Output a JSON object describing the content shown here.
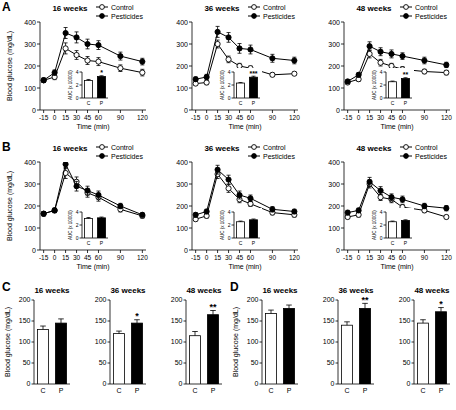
{
  "chart_data": [
    {
      "type": "line",
      "panel_label": "A",
      "title": "16 weeks",
      "x_label": "Time (min)",
      "y_label": "Blood glucose (mg/dL)",
      "x": [
        -15,
        0,
        15,
        30,
        45,
        60,
        90,
        120
      ],
      "xlim": [
        -20,
        125
      ],
      "xticks": [
        -15,
        0,
        15,
        30,
        45,
        60,
        90,
        120
      ],
      "ylim": [
        0,
        400
      ],
      "yticks": [
        0,
        100,
        200,
        300,
        400
      ],
      "legend": "upper right",
      "series": [
        {
          "name": "Control",
          "color": "#000000",
          "marker": "open-circle",
          "values": [
            135,
            150,
            280,
            250,
            225,
            220,
            190,
            170
          ],
          "errors": [
            10,
            12,
            25,
            20,
            18,
            18,
            15,
            15
          ]
        },
        {
          "name": "Pesticides",
          "color": "#000000",
          "marker": "filled-circle",
          "values": [
            135,
            170,
            350,
            330,
            300,
            295,
            245,
            220
          ],
          "errors": [
            10,
            12,
            25,
            25,
            22,
            20,
            18,
            15
          ]
        }
      ]
    },
    {
      "type": "line",
      "title": "36 weeks",
      "x_label": "Time (min)",
      "x": [
        -15,
        0,
        15,
        30,
        45,
        60,
        90,
        120
      ],
      "xlim": [
        -20,
        125
      ],
      "xticks": [
        -15,
        0,
        15,
        30,
        45,
        60,
        90,
        120
      ],
      "ylim": [
        0,
        400
      ],
      "yticks": [
        0,
        100,
        200,
        300,
        400
      ],
      "legend": "upper right",
      "series": [
        {
          "name": "Control",
          "color": "#000000",
          "marker": "open-circle",
          "values": [
            120,
            125,
            300,
            230,
            200,
            190,
            160,
            165
          ],
          "errors": [
            8,
            10,
            18,
            15,
            12,
            10,
            8,
            8
          ]
        },
        {
          "name": "Pesticides",
          "color": "#000000",
          "marker": "filled-circle",
          "values": [
            140,
            150,
            355,
            330,
            280,
            275,
            235,
            225
          ],
          "errors": [
            10,
            12,
            25,
            22,
            22,
            20,
            18,
            15
          ]
        }
      ]
    },
    {
      "type": "line",
      "title": "48 weeks",
      "x_label": "Time (min)",
      "x": [
        -15,
        0,
        15,
        30,
        45,
        60,
        90,
        120
      ],
      "xlim": [
        -20,
        125
      ],
      "xticks": [
        -15,
        0,
        15,
        30,
        45,
        60,
        90,
        120
      ],
      "ylim": [
        0,
        400
      ],
      "yticks": [
        0,
        100,
        200,
        300,
        400
      ],
      "legend": "upper right",
      "series": [
        {
          "name": "Control",
          "color": "#000000",
          "marker": "open-circle",
          "values": [
            125,
            140,
            255,
            215,
            200,
            185,
            175,
            170
          ],
          "errors": [
            8,
            10,
            18,
            15,
            12,
            12,
            10,
            10
          ]
        },
        {
          "name": "Pesticides",
          "color": "#000000",
          "marker": "filled-circle",
          "values": [
            130,
            160,
            290,
            265,
            255,
            245,
            225,
            205
          ],
          "errors": [
            8,
            10,
            20,
            18,
            18,
            15,
            15,
            12
          ]
        }
      ]
    },
    {
      "type": "line",
      "panel_label": "B",
      "title": "16 weeks",
      "x_label": "Time (min)",
      "y_label": "Blood glucose (mg/dL)",
      "x": [
        -15,
        0,
        15,
        30,
        45,
        60,
        90,
        120
      ],
      "xlim": [
        -20,
        125
      ],
      "xticks": [
        -15,
        0,
        15,
        30,
        45,
        60,
        90,
        120
      ],
      "ylim": [
        0,
        400
      ],
      "yticks": [
        0,
        100,
        200,
        300,
        400
      ],
      "legend": "upper right",
      "series": [
        {
          "name": "Control",
          "color": "#000000",
          "marker": "open-circle",
          "values": [
            165,
            180,
            350,
            310,
            260,
            240,
            185,
            155
          ],
          "errors": [
            10,
            10,
            25,
            22,
            20,
            18,
            12,
            10
          ]
        },
        {
          "name": "Pesticides",
          "color": "#000000",
          "marker": "filled-circle",
          "values": [
            165,
            180,
            390,
            290,
            270,
            250,
            200,
            160
          ],
          "errors": [
            10,
            10,
            20,
            22,
            20,
            18,
            12,
            10
          ]
        }
      ]
    },
    {
      "type": "line",
      "title": "36 weeks",
      "x_label": "Time (min)",
      "x": [
        -15,
        0,
        15,
        30,
        45,
        60,
        90,
        120
      ],
      "xlim": [
        -20,
        125
      ],
      "xticks": [
        -15,
        0,
        15,
        30,
        45,
        60,
        90,
        120
      ],
      "ylim": [
        0,
        400
      ],
      "yticks": [
        0,
        100,
        200,
        300,
        400
      ],
      "legend": "upper right",
      "series": [
        {
          "name": "Control",
          "color": "#000000",
          "marker": "open-circle",
          "values": [
            140,
            155,
            345,
            280,
            230,
            210,
            170,
            160
          ],
          "errors": [
            8,
            10,
            20,
            18,
            15,
            12,
            10,
            10
          ]
        },
        {
          "name": "Pesticides",
          "color": "#000000",
          "marker": "filled-circle",
          "values": [
            160,
            175,
            365,
            320,
            250,
            235,
            185,
            175
          ],
          "errors": [
            10,
            10,
            20,
            20,
            18,
            15,
            12,
            10
          ]
        }
      ]
    },
    {
      "type": "line",
      "title": "48 weeks",
      "x_label": "Time (min)",
      "x": [
        -15,
        0,
        15,
        30,
        45,
        60,
        90,
        120
      ],
      "xlim": [
        -20,
        125
      ],
      "xticks": [
        -15,
        0,
        15,
        30,
        45,
        60,
        90,
        120
      ],
      "ylim": [
        0,
        400
      ],
      "yticks": [
        0,
        100,
        200,
        300,
        400
      ],
      "legend": "upper right",
      "series": [
        {
          "name": "Control",
          "color": "#000000",
          "marker": "open-circle",
          "values": [
            150,
            160,
            300,
            240,
            230,
            195,
            180,
            150
          ],
          "errors": [
            8,
            10,
            18,
            15,
            15,
            12,
            10,
            8
          ]
        },
        {
          "name": "Pesticides",
          "color": "#000000",
          "marker": "filled-circle",
          "values": [
            170,
            180,
            310,
            270,
            240,
            230,
            200,
            190
          ],
          "errors": [
            10,
            10,
            20,
            18,
            15,
            15,
            12,
            12
          ]
        }
      ]
    },
    {
      "type": "bar",
      "y_label": "AUC (x 10000)",
      "categories": [
        "C",
        "P"
      ],
      "values": [
        2.7,
        3.3
      ],
      "errors": [
        0.15,
        0.12
      ],
      "colors": [
        "#ffffff",
        "#000000"
      ],
      "ylim": [
        0,
        4
      ],
      "yticks": [
        0,
        2,
        4
      ],
      "annotations": [
        {
          "text": "*",
          "category": "P"
        }
      ]
    },
    {
      "type": "bar",
      "y_label": "AUC (x 10000)",
      "categories": [
        "C",
        "P"
      ],
      "values": [
        2.3,
        3.2
      ],
      "errors": [
        0.08,
        0.15
      ],
      "colors": [
        "#ffffff",
        "#000000"
      ],
      "ylim": [
        0,
        4
      ],
      "yticks": [
        0,
        2,
        4
      ],
      "annotations": [
        {
          "text": "***",
          "category": "P"
        }
      ]
    },
    {
      "type": "bar",
      "y_label": "AUC (x 10000)",
      "categories": [
        "C",
        "P"
      ],
      "values": [
        2.5,
        3.0
      ],
      "errors": [
        0.1,
        0.12
      ],
      "colors": [
        "#ffffff",
        "#000000"
      ],
      "ylim": [
        0,
        4
      ],
      "yticks": [
        0,
        2,
        4
      ],
      "annotations": [
        {
          "text": "**",
          "category": "P"
        }
      ]
    },
    {
      "type": "bar",
      "y_label": "AUC (x 10000)",
      "categories": [
        "C",
        "P"
      ],
      "values": [
        3.0,
        3.1
      ],
      "errors": [
        0.15,
        0.12
      ],
      "colors": [
        "#ffffff",
        "#000000"
      ],
      "ylim": [
        0,
        4
      ],
      "yticks": [
        0,
        2,
        4
      ],
      "annotations": []
    },
    {
      "type": "bar",
      "y_label": "AUC (x 10000)",
      "categories": [
        "C",
        "P"
      ],
      "values": [
        2.5,
        2.8
      ],
      "errors": [
        0.1,
        0.12
      ],
      "colors": [
        "#ffffff",
        "#000000"
      ],
      "ylim": [
        0,
        4
      ],
      "yticks": [
        0,
        2,
        4
      ],
      "annotations": []
    },
    {
      "type": "bar",
      "y_label": "AUC (x 10000)",
      "categories": [
        "C",
        "P"
      ],
      "values": [
        2.5,
        2.7
      ],
      "errors": [
        0.1,
        0.1
      ],
      "colors": [
        "#ffffff",
        "#000000"
      ],
      "ylim": [
        0,
        4
      ],
      "yticks": [
        0,
        2,
        4
      ],
      "annotations": []
    },
    {
      "type": "bar",
      "panel_label": "C",
      "title": "16 weeks",
      "y_label": "Blood glucose (mg/dL)",
      "categories": [
        "C",
        "P"
      ],
      "values": [
        130,
        145
      ],
      "errors": [
        8,
        10
      ],
      "colors": [
        "#ffffff",
        "#000000"
      ],
      "ylim": [
        0,
        200
      ],
      "yticks": [
        0,
        50,
        100,
        150,
        200
      ],
      "annotations": []
    },
    {
      "type": "bar",
      "title": "36 weeks",
      "categories": [
        "C",
        "P"
      ],
      "values": [
        120,
        145
      ],
      "errors": [
        6,
        8
      ],
      "colors": [
        "#ffffff",
        "#000000"
      ],
      "ylim": [
        0,
        200
      ],
      "yticks": [
        0,
        50,
        100,
        150,
        200
      ],
      "annotations": [
        {
          "text": "*",
          "category": "P"
        }
      ]
    },
    {
      "type": "bar",
      "title": "48 weeks",
      "categories": [
        "C",
        "P"
      ],
      "values": [
        115,
        165
      ],
      "errors": [
        10,
        10
      ],
      "colors": [
        "#ffffff",
        "#000000"
      ],
      "ylim": [
        0,
        200
      ],
      "yticks": [
        0,
        50,
        100,
        150,
        200
      ],
      "annotations": [
        {
          "text": "**",
          "category": "P"
        }
      ]
    },
    {
      "type": "bar",
      "panel_label": "D",
      "title": "16 weeks",
      "y_label": "Blood glucose (mg/dL)",
      "categories": [
        "C",
        "P"
      ],
      "values": [
        168,
        180
      ],
      "errors": [
        8,
        8
      ],
      "colors": [
        "#ffffff",
        "#000000"
      ],
      "ylim": [
        0,
        200
      ],
      "yticks": [
        0,
        50,
        100,
        150,
        200
      ],
      "annotations": []
    },
    {
      "type": "bar",
      "title": "36 weeks",
      "categories": [
        "C",
        "P"
      ],
      "values": [
        140,
        180
      ],
      "errors": [
        8,
        12
      ],
      "colors": [
        "#ffffff",
        "#000000"
      ],
      "ylim": [
        0,
        200
      ],
      "yticks": [
        0,
        50,
        100,
        150,
        200
      ],
      "annotations": [
        {
          "text": "**",
          "category": "P"
        }
      ]
    },
    {
      "type": "bar",
      "title": "48 weeks",
      "categories": [
        "C",
        "P"
      ],
      "values": [
        145,
        172
      ],
      "errors": [
        8,
        10
      ],
      "colors": [
        "#ffffff",
        "#000000"
      ],
      "ylim": [
        0,
        200
      ],
      "yticks": [
        0,
        50,
        100,
        150,
        200
      ],
      "annotations": [
        {
          "text": "*",
          "category": "P"
        }
      ]
    }
  ]
}
